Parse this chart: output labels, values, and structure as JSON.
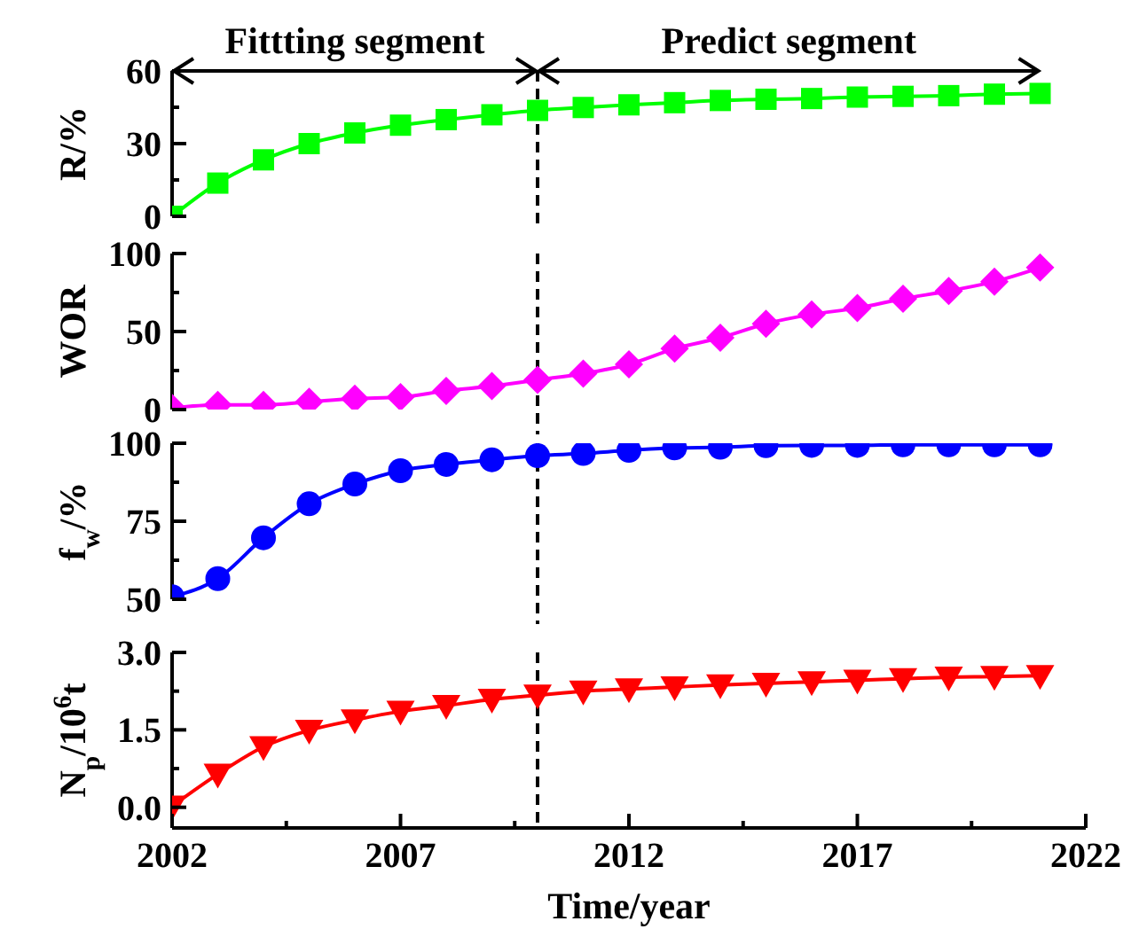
{
  "chart_data": [
    {
      "type": "line",
      "ylabel": "R/%",
      "x": [
        2002,
        2003,
        2004,
        2005,
        2006,
        2007,
        2008,
        2009,
        2010,
        2011,
        2012,
        2013,
        2014,
        2015,
        2016,
        2017,
        2018,
        2019,
        2020,
        2021
      ],
      "xlim": [
        2002,
        2022
      ],
      "ylim": [
        0,
        60
      ],
      "yticks": [
        0,
        {
          "value": 15,
          "label": null
        },
        30,
        {
          "value": 45,
          "label": null
        },
        60
      ],
      "tick_labels": "y",
      "marker": "square",
      "annotations": [
        "Fittting segment",
        "Predict segment"
      ],
      "ref_lines": [
        {
          "axis": "x",
          "value": 2010,
          "color": "#000000",
          "line_style": "dashed"
        }
      ],
      "series": [
        {
          "color": "#00ff00",
          "values": [
            0,
            13.7,
            23.3,
            30,
            34.4,
            37.6,
            39.9,
            41.9,
            43.7,
            44.9,
            46,
            46.9,
            47.8,
            48.3,
            48.6,
            49.2,
            49.5,
            49.8,
            50.4,
            50.7
          ]
        }
      ]
    },
    {
      "type": "line",
      "ylabel": "WOR",
      "x": [
        2002,
        2003,
        2004,
        2005,
        2006,
        2007,
        2008,
        2009,
        2010,
        2011,
        2012,
        2013,
        2014,
        2015,
        2016,
        2017,
        2018,
        2019,
        2020,
        2021
      ],
      "xlim": [
        2002,
        2022
      ],
      "ylim": [
        0,
        100
      ],
      "yticks": [
        0,
        {
          "value": 25,
          "label": null
        },
        50,
        {
          "value": 75,
          "label": null
        },
        100
      ],
      "tick_labels": "y",
      "marker": "diamond",
      "ref_lines": [
        {
          "axis": "x",
          "value": 2010,
          "color": "#000000",
          "line_style": "dashed"
        }
      ],
      "series": [
        {
          "color": "#ff00ff",
          "values": [
            1,
            3,
            3,
            5,
            7,
            8,
            12,
            15,
            19,
            23,
            29,
            39,
            46,
            55,
            61,
            65,
            71,
            76,
            82,
            91
          ]
        }
      ]
    },
    {
      "type": "line",
      "ylabel": "f$_{w}$/%",
      "x": [
        2002,
        2003,
        2004,
        2005,
        2006,
        2007,
        2008,
        2009,
        2010,
        2011,
        2012,
        2013,
        2014,
        2015,
        2016,
        2017,
        2018,
        2019,
        2020,
        2021
      ],
      "xlim": [
        2002,
        2022
      ],
      "ylim": [
        50,
        100
      ],
      "yticks": [
        50,
        {
          "value": 62.5,
          "label": null
        },
        75,
        {
          "value": 87.5,
          "label": null
        },
        100
      ],
      "tick_labels": "y",
      "marker": "circle",
      "ref_lines": [
        {
          "axis": "x",
          "value": 2010,
          "color": "#000000",
          "line_style": "dashed"
        }
      ],
      "series": [
        {
          "color": "#0000ff",
          "values": [
            50.8,
            56.6,
            69.7,
            80.6,
            86.9,
            91.2,
            93.2,
            94.7,
            96,
            96.7,
            97.7,
            98.5,
            98.7,
            99.2,
            99.3,
            99.3,
            99.5,
            99.5,
            99.5,
            99.5
          ]
        }
      ]
    },
    {
      "type": "line",
      "ylabel": "N$_{p}$/10$^{6}$t",
      "xlabel": "Time/year",
      "x": [
        2002,
        2003,
        2004,
        2005,
        2006,
        2007,
        2008,
        2009,
        2010,
        2011,
        2012,
        2013,
        2014,
        2015,
        2016,
        2017,
        2018,
        2019,
        2020,
        2021
      ],
      "xlim": [
        2002,
        2022
      ],
      "xticks": [
        2002,
        {
          "value": 2004.5,
          "label": null
        },
        2007,
        {
          "value": 2009.5,
          "label": null
        },
        2012,
        {
          "value": 2014.5,
          "label": null
        },
        2017,
        {
          "value": 2019.5,
          "label": null
        },
        2022
      ],
      "ylim": [
        -0.4,
        3.0
      ],
      "yticks": [
        {
          "value": 0,
          "label": "0.0"
        },
        {
          "value": 0.75,
          "label": null
        },
        1.5,
        {
          "value": 2.25,
          "label": null
        },
        {
          "value": 3,
          "label": "3.0"
        }
      ],
      "marker": "triangle",
      "ref_lines": [
        {
          "axis": "x",
          "value": 2010,
          "color": "#000000",
          "line_style": "dashed"
        }
      ],
      "series": [
        {
          "color": "#ff0000",
          "values": [
            0.02,
            0.64,
            1.17,
            1.49,
            1.69,
            1.86,
            1.97,
            2.09,
            2.17,
            2.25,
            2.29,
            2.33,
            2.37,
            2.4,
            2.43,
            2.46,
            2.49,
            2.52,
            2.53,
            2.55
          ]
        }
      ]
    }
  ]
}
